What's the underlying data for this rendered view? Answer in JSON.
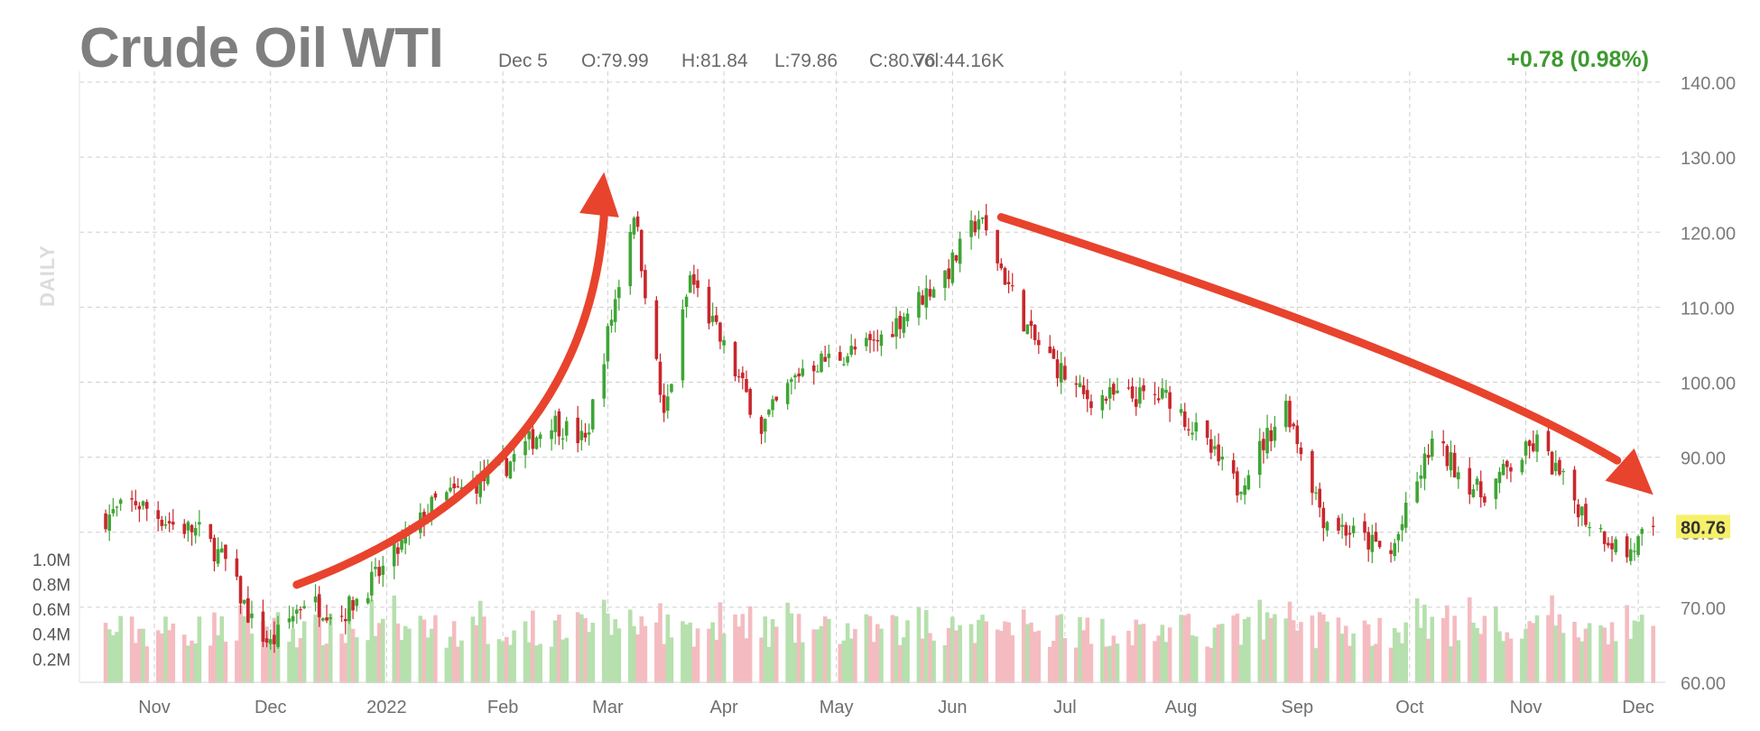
{
  "header": {
    "title": "Crude Oil WTI",
    "date": "Dec 5",
    "open": "O:79.99",
    "high": "H:81.84",
    "low": "L:79.86",
    "close": "C:80.76",
    "volume": "Vol:44.16K",
    "change": "+0.78 (0.98%)",
    "side_label": "DAILY"
  },
  "colors": {
    "up": "#3fa535",
    "down": "#c8272c",
    "vol_up": "#b6e0ad",
    "vol_down": "#f4bcc0",
    "arrow": "#e8432d",
    "last_price_bg": "#f6f06a",
    "change_text": "#3c9a2e"
  },
  "chart_data": {
    "type": "candlestick",
    "title": "Crude Oil WTI",
    "y_axis": {
      "min": 60,
      "max": 140,
      "ticks": [
        "140.00",
        "130.00",
        "120.00",
        "110.00",
        "100.00",
        "90.00",
        "80.00",
        "70.00",
        "60.00"
      ]
    },
    "volume_axis": {
      "max_millions": 1.1,
      "ticks": [
        "1.0M",
        "0.8M",
        "0.6M",
        "0.4M",
        "0.2M"
      ]
    },
    "x_axis": {
      "ticks": [
        "Nov",
        "Dec",
        "2022",
        "Feb",
        "Mar",
        "Apr",
        "May",
        "Jun",
        "Jul",
        "Aug",
        "Sep",
        "Oct",
        "Nov",
        "Dec"
      ]
    },
    "last_price": "80.76",
    "grid": true,
    "annotations": [
      {
        "type": "arrow",
        "from": [
          "2021-12-08",
          73
        ],
        "to": [
          "2022-02-28",
          128
        ],
        "curve": "up"
      },
      {
        "type": "arrow",
        "from": [
          "2022-06-14",
          122
        ],
        "to": [
          "2022-12-05",
          85
        ],
        "curve": "down"
      }
    ],
    "closes_approx": [
      {
        "date": "2021-10-18",
        "close": 82
      },
      {
        "date": "2021-10-26",
        "close": 84
      },
      {
        "date": "2021-11-05",
        "close": 81
      },
      {
        "date": "2021-11-12",
        "close": 80
      },
      {
        "date": "2021-11-19",
        "close": 76
      },
      {
        "date": "2021-11-26",
        "close": 68
      },
      {
        "date": "2021-12-01",
        "close": 65
      },
      {
        "date": "2021-12-10",
        "close": 71
      },
      {
        "date": "2021-12-20",
        "close": 69
      },
      {
        "date": "2021-12-31",
        "close": 75
      },
      {
        "date": "2022-01-14",
        "close": 84
      },
      {
        "date": "2022-01-31",
        "close": 88
      },
      {
        "date": "2022-02-14",
        "close": 95
      },
      {
        "date": "2022-02-23",
        "close": 92
      },
      {
        "date": "2022-03-08",
        "close": 123
      },
      {
        "date": "2022-03-16",
        "close": 95
      },
      {
        "date": "2022-03-23",
        "close": 114
      },
      {
        "date": "2022-04-11",
        "close": 94
      },
      {
        "date": "2022-04-22",
        "close": 102
      },
      {
        "date": "2022-05-11",
        "close": 105
      },
      {
        "date": "2022-05-31",
        "close": 115
      },
      {
        "date": "2022-06-08",
        "close": 122
      },
      {
        "date": "2022-06-22",
        "close": 106
      },
      {
        "date": "2022-07-06",
        "close": 98
      },
      {
        "date": "2022-07-29",
        "close": 98
      },
      {
        "date": "2022-08-16",
        "close": 86
      },
      {
        "date": "2022-08-29",
        "close": 97
      },
      {
        "date": "2022-09-08",
        "close": 82
      },
      {
        "date": "2022-09-26",
        "close": 77
      },
      {
        "date": "2022-10-07",
        "close": 92
      },
      {
        "date": "2022-10-20",
        "close": 85
      },
      {
        "date": "2022-11-04",
        "close": 92
      },
      {
        "date": "2022-11-17",
        "close": 82
      },
      {
        "date": "2022-11-28",
        "close": 77
      },
      {
        "date": "2022-12-05",
        "close": 80.76
      }
    ]
  }
}
